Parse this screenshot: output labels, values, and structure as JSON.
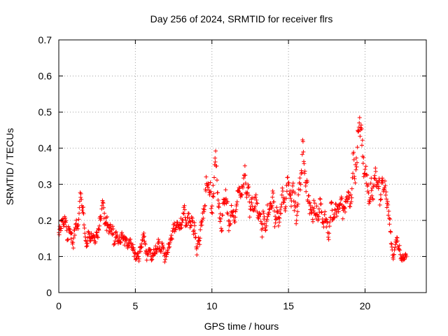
{
  "chart_data": {
    "type": "scatter",
    "title": "Day 256 of 2024, SRMTID for receiver flrs",
    "xlabel": "GPS time / hours",
    "ylabel": "SRMTID / TECUs",
    "xlim": [
      0,
      24
    ],
    "ylim": [
      0,
      0.7
    ],
    "x_ticks": [
      0,
      5,
      10,
      15,
      20
    ],
    "x_tick_labels": [
      "0",
      "5",
      "10",
      "15",
      "20"
    ],
    "y_ticks": [
      0,
      0.1,
      0.2,
      0.3,
      0.4,
      0.5,
      0.6,
      0.7
    ],
    "y_tick_labels": [
      "0",
      "0.1",
      "0.2",
      "0.3",
      "0.4",
      "0.5",
      "0.6",
      "0.7"
    ],
    "grid": true,
    "marker": "+",
    "color": "#ff0000",
    "sample_interval_hours": 0.025,
    "series": [
      {
        "name": "flrs",
        "envelope_hours": [
          0,
          0.5,
          1,
          1.4,
          2,
          2.5,
          3,
          3.5,
          4,
          4.5,
          5,
          5.5,
          6,
          6.5,
          7,
          7.5,
          8,
          8.5,
          9,
          9.5,
          10,
          10.3,
          10.6,
          11,
          11.5,
          12,
          12.5,
          13,
          13.5,
          14,
          14.5,
          15,
          15.5,
          16,
          16.3,
          16.6,
          17,
          17.5,
          18,
          18.5,
          19,
          19.3,
          19.6,
          19.9,
          20.2,
          20.5,
          21,
          21.5,
          21.8,
          22,
          22.3,
          22.7
        ],
        "envelope_center": [
          0.17,
          0.18,
          0.16,
          0.22,
          0.12,
          0.15,
          0.23,
          0.15,
          0.14,
          0.13,
          0.1,
          0.12,
          0.11,
          0.12,
          0.11,
          0.19,
          0.2,
          0.21,
          0.15,
          0.22,
          0.3,
          0.32,
          0.2,
          0.24,
          0.23,
          0.28,
          0.24,
          0.21,
          0.19,
          0.25,
          0.22,
          0.3,
          0.28,
          0.36,
          0.32,
          0.22,
          0.22,
          0.21,
          0.23,
          0.21,
          0.28,
          0.35,
          0.48,
          0.42,
          0.3,
          0.28,
          0.3,
          0.25,
          0.1,
          0.15,
          0.14,
          0.1
        ],
        "envelope_spread": [
          0.05,
          0.06,
          0.06,
          0.07,
          0.05,
          0.05,
          0.08,
          0.07,
          0.05,
          0.05,
          0.04,
          0.05,
          0.04,
          0.05,
          0.05,
          0.06,
          0.06,
          0.07,
          0.07,
          0.09,
          0.12,
          0.11,
          0.08,
          0.09,
          0.08,
          0.1,
          0.1,
          0.09,
          0.07,
          0.09,
          0.07,
          0.09,
          0.1,
          0.13,
          0.11,
          0.08,
          0.08,
          0.07,
          0.08,
          0.08,
          0.1,
          0.11,
          0.13,
          0.12,
          0.09,
          0.09,
          0.12,
          0.08,
          0.04,
          0.05,
          0.04,
          0.03
        ]
      }
    ]
  }
}
